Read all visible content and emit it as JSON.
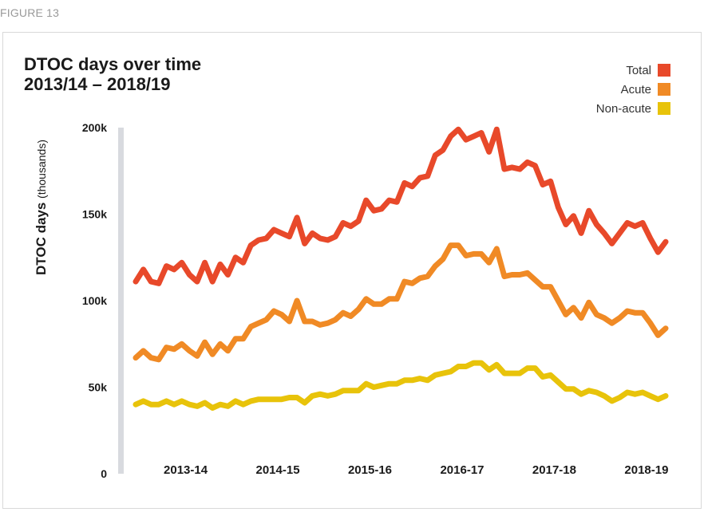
{
  "figure_label": "FIGURE 13",
  "chart_data": {
    "type": "line",
    "title_line1": "DTOC days over time",
    "title_line2": "2013/14 – 2018/19",
    "ylabel": "DTOC days",
    "ylabel_unit": "(thousands)",
    "yticks": [
      "0",
      "50k",
      "100k",
      "150k",
      "200k"
    ],
    "ytick_values": [
      0,
      50,
      100,
      150,
      200
    ],
    "ylim": [
      0,
      200
    ],
    "xticks": [
      "2013-14",
      "2014-15",
      "2015-16",
      "2016-17",
      "2017-18",
      "2018-19"
    ],
    "grid": false,
    "legend_position": "top-right",
    "series": [
      {
        "name": "Total",
        "color": "#e8492a",
        "values": [
          111,
          118,
          111,
          110,
          120,
          118,
          122,
          115,
          111,
          122,
          111,
          121,
          115,
          125,
          122,
          132,
          135,
          136,
          141,
          139,
          137,
          148,
          133,
          139,
          136,
          135,
          137,
          145,
          143,
          146,
          158,
          152,
          153,
          158,
          157,
          168,
          166,
          171,
          172,
          184,
          187,
          195,
          199,
          193,
          195,
          197,
          186,
          199,
          176,
          177,
          176,
          180,
          178,
          167,
          169,
          154,
          144,
          149,
          139,
          152,
          144,
          139,
          133,
          139,
          145,
          143,
          145,
          136,
          128,
          134
        ]
      },
      {
        "name": "Acute",
        "color": "#f08a25",
        "values": [
          67,
          71,
          67,
          66,
          73,
          72,
          75,
          71,
          68,
          76,
          69,
          75,
          71,
          78,
          78,
          85,
          87,
          89,
          94,
          92,
          88,
          100,
          88,
          88,
          86,
          87,
          89,
          93,
          91,
          95,
          101,
          98,
          98,
          101,
          101,
          111,
          110,
          113,
          114,
          120,
          124,
          132,
          132,
          126,
          127,
          127,
          122,
          130,
          114,
          115,
          115,
          116,
          112,
          108,
          108,
          100,
          92,
          96,
          90,
          99,
          92,
          90,
          87,
          90,
          94,
          93,
          93,
          87,
          80,
          84
        ]
      },
      {
        "name": "Non-acute",
        "color": "#e8c30a",
        "values": [
          40,
          42,
          40,
          40,
          42,
          40,
          42,
          40,
          39,
          41,
          38,
          40,
          39,
          42,
          40,
          42,
          43,
          43,
          43,
          43,
          44,
          44,
          41,
          45,
          46,
          45,
          46,
          48,
          48,
          48,
          52,
          50,
          51,
          52,
          52,
          54,
          54,
          55,
          54,
          57,
          58,
          59,
          62,
          62,
          64,
          64,
          60,
          63,
          58,
          58,
          58,
          61,
          61,
          56,
          57,
          53,
          49,
          49,
          46,
          48,
          47,
          45,
          42,
          44,
          47,
          46,
          47,
          45,
          43,
          45
        ]
      }
    ]
  }
}
